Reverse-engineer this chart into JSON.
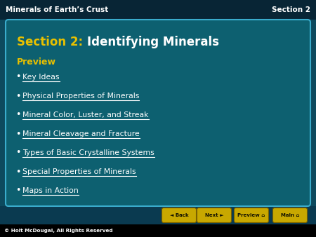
{
  "bg_color": "#0d4a5e",
  "header_bg": "#082535",
  "card_bg": "#0d6070",
  "card_border": "#3aaccc",
  "title_label": "Minerals of Earth’s Crust",
  "section_label": "Section 2",
  "header_text_color": "#ffffff",
  "section2_prefix": "Section 2: ",
  "section2_title": "Identifying Minerals",
  "section2_prefix_color": "#e8c000",
  "section2_title_color": "#ffffff",
  "preview_label": "Preview",
  "preview_color": "#e8c000",
  "bullet_items": [
    "Key Ideas",
    "Physical Properties of Minerals",
    "Mineral Color, Luster, and Streak",
    "Mineral Cleavage and Fracture",
    "Types of Basic Crystalline Systems",
    "Special Properties of Minerals",
    "Maps in Action"
  ],
  "bullet_color": "#ffffff",
  "footer_text": "© Holt McDougal, All Rights Reserved",
  "footer_color": "#ffffff",
  "footer_bg": "#000000",
  "button_labels": [
    "Back",
    "Next",
    "Preview",
    "Main"
  ],
  "button_color": "#c8a800",
  "button_text_color": "#111100",
  "nav_bg": "#0a3a50"
}
